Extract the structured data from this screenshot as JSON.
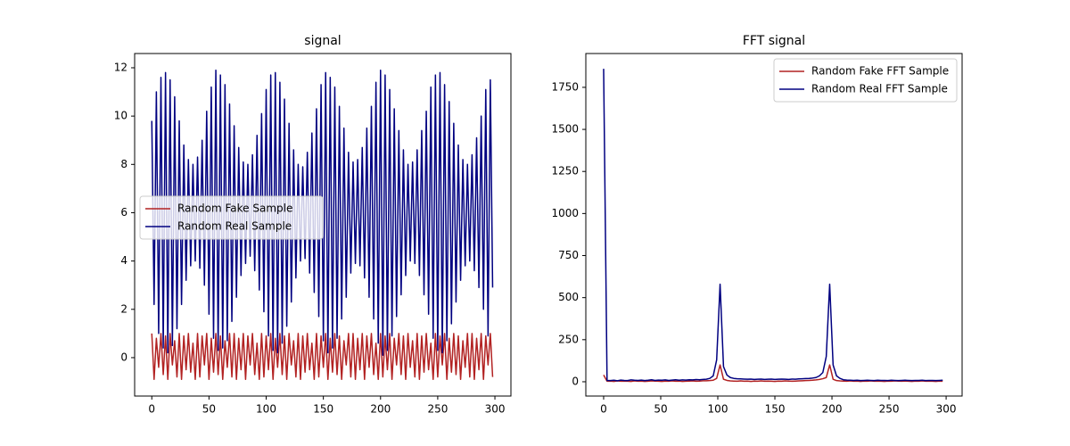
{
  "chart_data": [
    {
      "type": "line",
      "title": "signal",
      "x": [
        0,
        2,
        4,
        6,
        8,
        10,
        12,
        14,
        16,
        18,
        20,
        22,
        24,
        26,
        28,
        30,
        32,
        34,
        36,
        38,
        40,
        42,
        44,
        46,
        48,
        50,
        52,
        54,
        56,
        58,
        60,
        62,
        64,
        66,
        68,
        70,
        72,
        74,
        76,
        78,
        80,
        82,
        84,
        86,
        88,
        90,
        92,
        94,
        96,
        98,
        100,
        102,
        104,
        106,
        108,
        110,
        112,
        114,
        116,
        118,
        120,
        122,
        124,
        126,
        128,
        130,
        132,
        134,
        136,
        138,
        140,
        142,
        144,
        146,
        148,
        150,
        152,
        154,
        156,
        158,
        160,
        162,
        164,
        166,
        168,
        170,
        172,
        174,
        176,
        178,
        180,
        182,
        184,
        186,
        188,
        190,
        192,
        194,
        196,
        198,
        200,
        202,
        204,
        206,
        208,
        210,
        212,
        214,
        216,
        218,
        220,
        222,
        224,
        226,
        228,
        230,
        232,
        234,
        236,
        238,
        240,
        242,
        244,
        246,
        248,
        250,
        252,
        254,
        256,
        258,
        260,
        262,
        264,
        266,
        268,
        270,
        272,
        274,
        276,
        278,
        280,
        282,
        284,
        286,
        288,
        290,
        292,
        294,
        296,
        298
      ],
      "series": [
        {
          "name": "Random Fake Sample",
          "color": "#b22222",
          "values": [
            1.0,
            -0.9,
            0.8,
            -0.4,
            1.0,
            -0.7,
            0.9,
            -0.9,
            1.0,
            -0.3,
            0.7,
            -0.8,
            1.0,
            -0.9,
            0.9,
            -0.5,
            1.0,
            -0.6,
            0.6,
            -0.9,
            1.0,
            -0.8,
            0.9,
            -0.3,
            1.0,
            -0.9,
            0.8,
            -0.6,
            1.0,
            -0.7,
            0.9,
            -0.9,
            0.7,
            -0.4,
            1.0,
            -0.8,
            1.0,
            -0.9,
            0.8,
            -0.5,
            1.0,
            -0.9,
            0.9,
            -0.3,
            1.0,
            -0.7,
            0.6,
            -0.9,
            1.0,
            -0.8,
            0.9,
            -0.5,
            1.0,
            -0.9,
            0.8,
            -0.4,
            1.0,
            -0.7,
            0.9,
            -0.9,
            1.0,
            -0.3,
            0.7,
            -0.8,
            1.0,
            -0.9,
            0.9,
            -0.6,
            1.0,
            -0.5,
            0.6,
            -0.9,
            1.0,
            -0.8,
            0.9,
            -0.4,
            1.0,
            -0.9,
            0.8,
            -0.6,
            1.0,
            -0.7,
            0.9,
            -0.9,
            0.7,
            -0.3,
            1.0,
            -0.8,
            1.0,
            -0.9,
            0.8,
            -0.5,
            1.0,
            -0.9,
            0.9,
            -0.4,
            1.0,
            -0.7,
            0.6,
            -0.9,
            1.0,
            -0.8,
            0.9,
            -0.5,
            1.0,
            -0.9,
            0.8,
            -0.3,
            1.0,
            -0.7,
            0.9,
            -0.9,
            1.0,
            -0.4,
            0.7,
            -0.8,
            1.0,
            -0.9,
            0.9,
            -0.6,
            1.0,
            -0.5,
            0.6,
            -0.9,
            1.0,
            -0.8,
            0.9,
            -0.3,
            1.0,
            -0.9,
            0.8,
            -0.6,
            1.0,
            -0.7,
            0.9,
            -0.9,
            0.7,
            -0.4,
            1.0,
            -0.8,
            1.0,
            -0.9,
            0.8,
            -0.5,
            1.0,
            -0.9,
            0.9,
            -0.3,
            1.0,
            -0.8
          ]
        },
        {
          "name": "Random Real Sample",
          "color": "#000080",
          "values": [
            9.8,
            2.2,
            11.0,
            1.0,
            11.6,
            0.4,
            11.8,
            0.2,
            11.5,
            0.5,
            10.8,
            1.2,
            9.8,
            2.2,
            8.8,
            3.2,
            8.2,
            3.8,
            8.0,
            4.0,
            8.3,
            3.7,
            9.0,
            3.0,
            10.2,
            1.8,
            11.2,
            0.8,
            11.9,
            0.3,
            11.7,
            0.4,
            11.3,
            0.7,
            10.5,
            1.5,
            9.6,
            2.5,
            8.7,
            3.4,
            8.1,
            3.9,
            8.0,
            4.2,
            8.4,
            3.6,
            9.2,
            2.8,
            10.1,
            1.9,
            11.1,
            0.9,
            11.7,
            0.3,
            11.8,
            0.2,
            11.4,
            0.6,
            10.7,
            1.3,
            9.7,
            2.3,
            8.6,
            3.3,
            8.0,
            4.0,
            7.9,
            4.1,
            8.5,
            3.5,
            9.3,
            2.7,
            10.3,
            1.7,
            11.3,
            0.7,
            11.8,
            0.2,
            11.6,
            0.4,
            11.2,
            0.8,
            10.4,
            1.6,
            9.5,
            2.5,
            8.5,
            3.5,
            8.1,
            3.9,
            8.2,
            3.8,
            8.7,
            3.3,
            9.5,
            2.5,
            10.4,
            1.6,
            11.4,
            0.6,
            11.9,
            0.1,
            11.7,
            0.3,
            11.1,
            0.9,
            10.3,
            1.7,
            9.4,
            2.6,
            8.6,
            3.4,
            8.0,
            4.0,
            8.1,
            3.9,
            8.6,
            3.4,
            9.4,
            2.6,
            10.2,
            1.8,
            11.2,
            0.8,
            11.7,
            0.3,
            11.8,
            0.2,
            11.3,
            0.7,
            10.6,
            1.4,
            9.7,
            2.3,
            8.8,
            3.2,
            8.2,
            3.8,
            8.0,
            4.0,
            8.4,
            3.6,
            9.1,
            2.9,
            10.0,
            2.0,
            11.1,
            0.9,
            11.5,
            2.9
          ]
        }
      ],
      "xlim": [
        -15,
        314
      ],
      "ylim": [
        -1.59,
        12.59
      ],
      "xticks": [
        0,
        50,
        100,
        150,
        200,
        250,
        300
      ],
      "yticks": [
        0,
        2,
        4,
        6,
        8,
        10,
        12
      ],
      "legend": "center left"
    },
    {
      "type": "line",
      "title": "FFT signal",
      "x": [
        0,
        3,
        6,
        9,
        12,
        15,
        18,
        21,
        24,
        27,
        30,
        33,
        36,
        39,
        42,
        45,
        48,
        51,
        54,
        57,
        60,
        63,
        66,
        69,
        72,
        75,
        78,
        81,
        84,
        87,
        90,
        93,
        96,
        99,
        102,
        105,
        108,
        111,
        114,
        117,
        120,
        123,
        126,
        129,
        132,
        135,
        138,
        141,
        144,
        147,
        150,
        153,
        156,
        159,
        162,
        165,
        168,
        171,
        174,
        177,
        180,
        183,
        186,
        189,
        192,
        195,
        198,
        201,
        204,
        207,
        210,
        213,
        216,
        219,
        222,
        225,
        228,
        231,
        234,
        237,
        240,
        243,
        246,
        249,
        252,
        255,
        258,
        261,
        264,
        267,
        270,
        273,
        276,
        279,
        282,
        285,
        288,
        291,
        294,
        297
      ],
      "series": [
        {
          "name": "Random Fake FFT Sample",
          "color": "#b22222",
          "values": [
            40,
            3,
            4,
            2,
            5,
            3,
            4,
            3,
            2,
            5,
            3,
            4,
            2,
            3,
            5,
            4,
            3,
            2,
            4,
            3,
            5,
            3,
            4,
            2,
            3,
            4,
            5,
            3,
            4,
            6,
            6,
            7,
            9,
            20,
            100,
            15,
            8,
            5,
            4,
            3,
            5,
            3,
            4,
            2,
            4,
            3,
            5,
            3,
            4,
            3,
            2,
            4,
            3,
            5,
            4,
            3,
            4,
            5,
            6,
            7,
            8,
            9,
            11,
            14,
            18,
            25,
            100,
            15,
            7,
            5,
            4,
            3,
            5,
            3,
            4,
            2,
            4,
            3,
            5,
            3,
            4,
            3,
            2,
            4,
            3,
            5,
            4,
            3,
            4,
            3,
            2,
            4,
            3,
            5,
            3,
            4,
            3,
            2,
            4,
            3
          ]
        },
        {
          "name": "Random Real FFT Sample",
          "color": "#000080",
          "values": [
            1860,
            8,
            7,
            9,
            6,
            10,
            8,
            7,
            11,
            9,
            8,
            10,
            7,
            9,
            12,
            8,
            10,
            9,
            11,
            8,
            10,
            12,
            9,
            11,
            10,
            12,
            11,
            13,
            12,
            14,
            15,
            20,
            35,
            130,
            580,
            90,
            40,
            25,
            20,
            18,
            17,
            16,
            15,
            16,
            14,
            15,
            16,
            14,
            15,
            16,
            14,
            15,
            16,
            15,
            14,
            16,
            15,
            17,
            18,
            19,
            20,
            22,
            25,
            35,
            55,
            150,
            580,
            100,
            35,
            20,
            12,
            10,
            9,
            8,
            9,
            7,
            8,
            9,
            8,
            7,
            9,
            8,
            8,
            7,
            9,
            8,
            7,
            8,
            9,
            8,
            7,
            8,
            8,
            9,
            7,
            8,
            8,
            7,
            8,
            9
          ]
        }
      ],
      "xlim": [
        -15.6,
        314
      ],
      "ylim": [
        -85,
        1951
      ],
      "xticks": [
        0,
        50,
        100,
        150,
        200,
        250,
        300
      ],
      "yticks": [
        0,
        250,
        500,
        750,
        1000,
        1250,
        1500,
        1750
      ],
      "legend": "upper right"
    }
  ]
}
